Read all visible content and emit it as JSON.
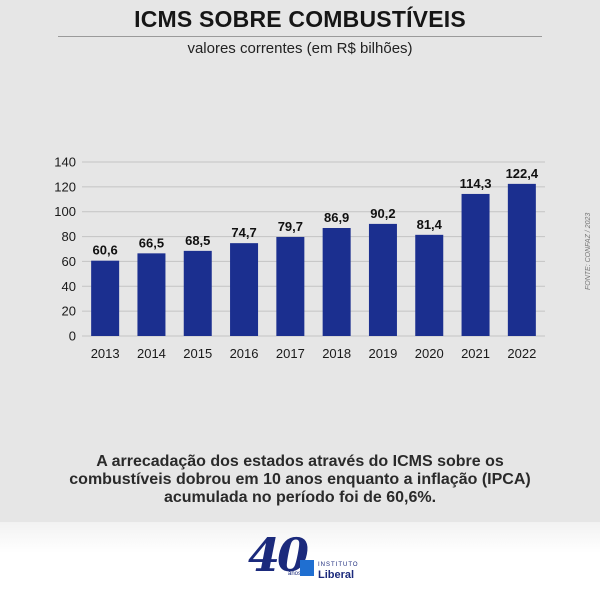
{
  "header": {
    "title": "ICMS SOBRE COMBUSTÍVEIS",
    "subtitle": "valores correntes (em R$ bilhões)"
  },
  "chart_data": {
    "type": "bar",
    "categories": [
      "2013",
      "2014",
      "2015",
      "2016",
      "2017",
      "2018",
      "2019",
      "2020",
      "2021",
      "2022"
    ],
    "values": [
      60.6,
      66.5,
      68.5,
      74.7,
      79.7,
      86.9,
      90.2,
      81.4,
      114.3,
      122.4
    ],
    "value_labels": [
      "60,6",
      "66,5",
      "68,5",
      "74,7",
      "79,7",
      "86,9",
      "90,2",
      "81,4",
      "114,3",
      "122,4"
    ],
    "yticks": [
      0,
      20,
      40,
      60,
      80,
      100,
      120,
      140
    ],
    "ylim": [
      0,
      140
    ],
    "grid": true,
    "bar_color": "#1b2f8f",
    "grid_color": "#c4c4c4"
  },
  "source": "FONTE: CONFAZ / 2023",
  "caption": {
    "line1": "A arrecadação dos estados através do ICMS sobre os",
    "line2": "combustíveis dobrou em 10 anos enquanto a inflação (IPCA)",
    "line3": "acumulada no período foi de 60,6%."
  },
  "footer": {
    "logo_number": "40",
    "logo_anos": "anos",
    "logo_instituto": "INSTITUTO",
    "logo_liberal": "Liberal"
  },
  "colors": {
    "background": "#e6e6e6",
    "brand_blue": "#1b2a7c"
  }
}
